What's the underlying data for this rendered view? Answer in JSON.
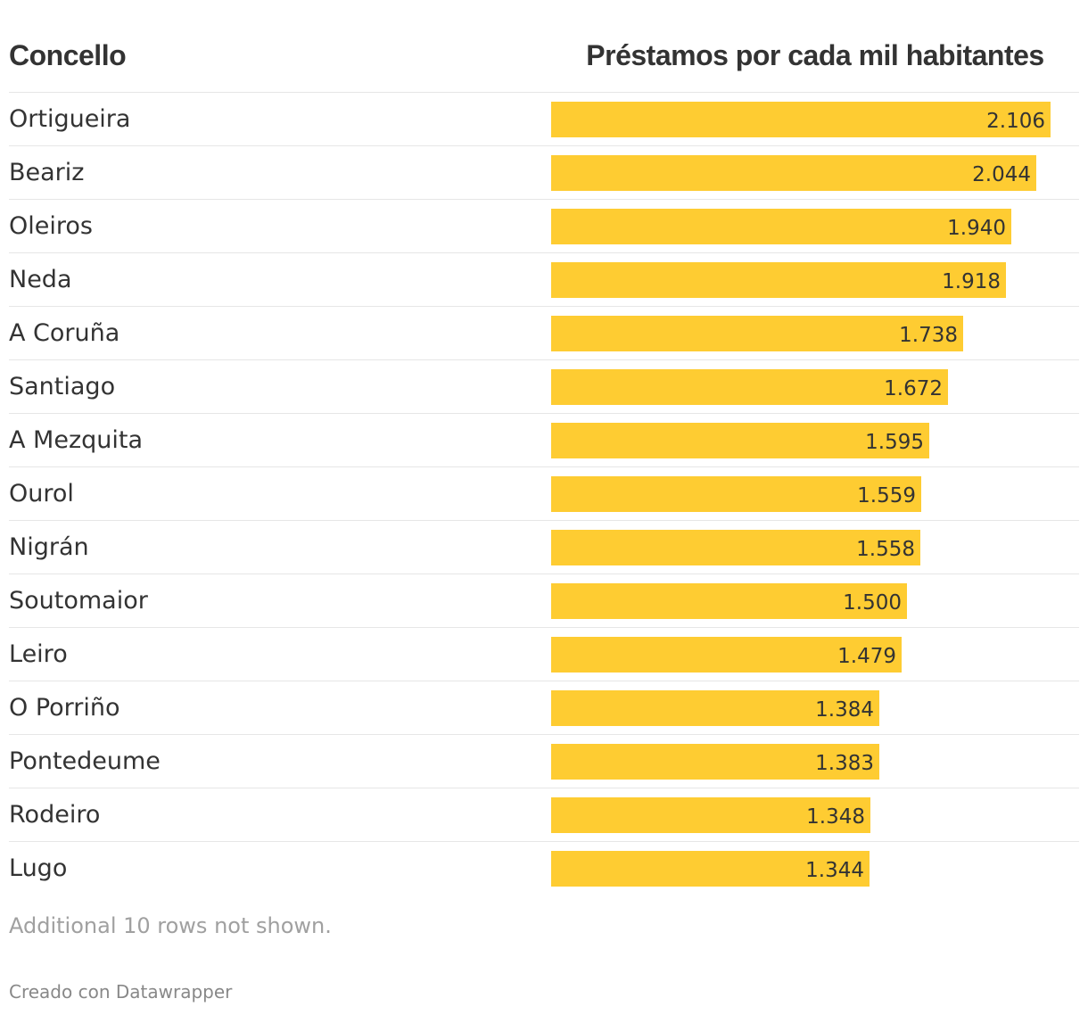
{
  "chart_data": {
    "type": "bar",
    "orientation": "horizontal",
    "columns": {
      "name_header": "Concello",
      "value_header": "Préstamos por cada mil habitantes"
    },
    "categories": [
      "Ortigueira",
      "Beariz",
      "Oleiros",
      "Neda",
      "A Coruña",
      "Santiago",
      "A Mezquita",
      "Ourol",
      "Nigrán",
      "Soutomaior",
      "Leiro",
      "O Porriño",
      "Pontedeume",
      "Rodeiro",
      "Lugo"
    ],
    "values": [
      2106,
      2044,
      1940,
      1918,
      1738,
      1672,
      1595,
      1559,
      1558,
      1500,
      1479,
      1384,
      1383,
      1348,
      1344
    ],
    "value_labels": [
      "2.106",
      "2.044",
      "1.940",
      "1.918",
      "1.738",
      "1.672",
      "1.595",
      "1.559",
      "1.558",
      "1.500",
      "1.479",
      "1.384",
      "1.383",
      "1.348",
      "1.344"
    ],
    "bar_color": "#fecc32",
    "note": "Additional 10 rows not shown."
  },
  "footer": {
    "credit": "Creado con Datawrapper"
  },
  "colors": {
    "text": "#333333",
    "divider": "#e6e6e6",
    "note_text": "#a0a0a0"
  }
}
